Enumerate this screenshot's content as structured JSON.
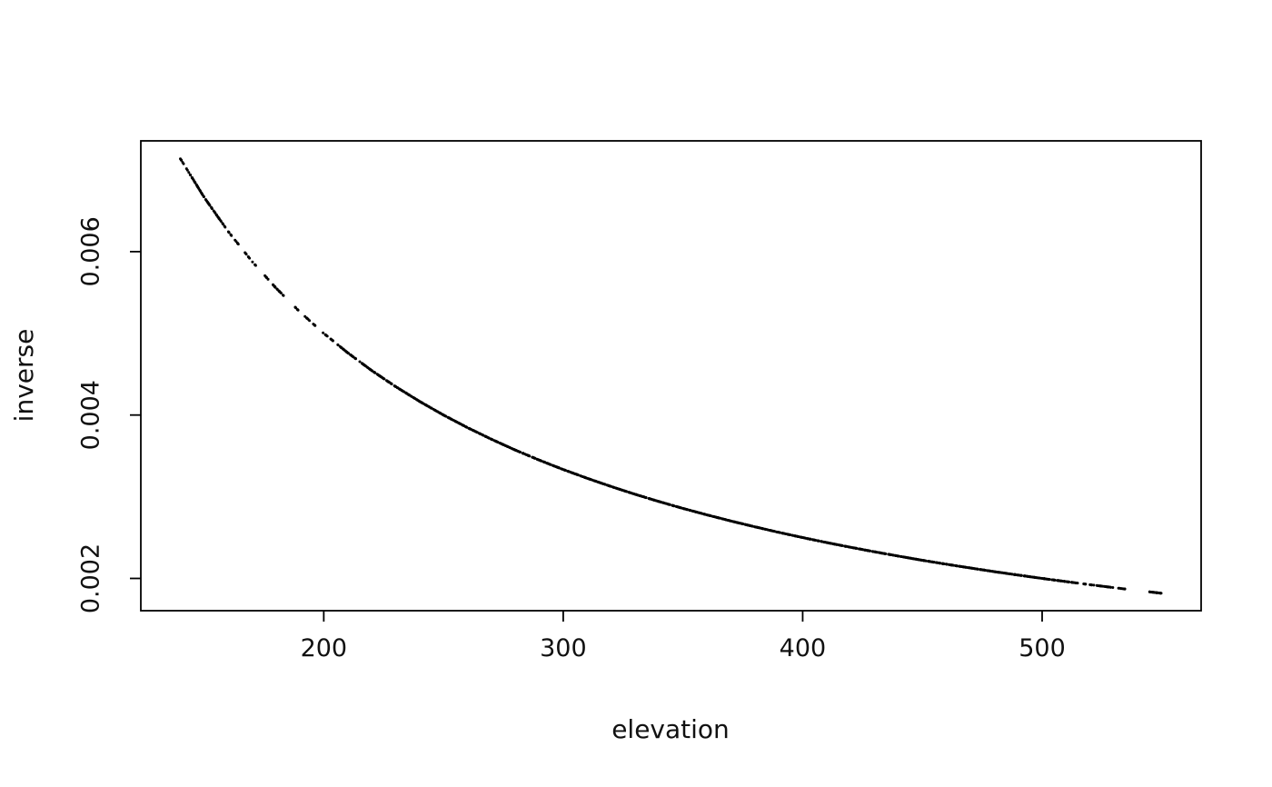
{
  "page": {
    "background": "#ffffff"
  },
  "chart_data": {
    "type": "scatter",
    "xlabel": "elevation",
    "ylabel": "inverse",
    "x_ticks": [
      200,
      300,
      400,
      500
    ],
    "x_tick_labels": [
      "200",
      "300",
      "400",
      "500"
    ],
    "y_ticks": [
      0.002,
      0.004,
      0.006
    ],
    "y_tick_labels": [
      "0.002",
      "0.004",
      "0.006"
    ],
    "xlim": [
      123.6,
      566.4
    ],
    "ylim": [
      0.001605,
      0.007356
    ],
    "grid": false,
    "legend": false,
    "point_color": "#000000",
    "axis_color": "#000000",
    "relationship": "inverse = 1 / elevation",
    "x_range": [
      140,
      550
    ],
    "y_range": [
      0.001818,
      0.007143
    ],
    "sample_points": {
      "elevation": [
        140,
        150,
        160,
        170,
        180,
        190,
        200,
        210,
        220,
        230,
        240,
        250,
        260,
        270,
        280,
        290,
        300,
        310,
        320,
        330,
        340,
        350,
        360,
        370,
        380,
        390,
        400,
        410,
        420,
        430,
        440,
        450,
        460,
        470,
        480,
        490,
        500,
        510,
        520,
        530,
        540,
        550
      ],
      "inverse": [
        0.007143,
        0.006667,
        0.00625,
        0.005882,
        0.005556,
        0.005263,
        0.005,
        0.004762,
        0.004545,
        0.004348,
        0.004167,
        0.004,
        0.003846,
        0.003704,
        0.003571,
        0.003448,
        0.003333,
        0.003226,
        0.003125,
        0.00303,
        0.002941,
        0.002857,
        0.002778,
        0.002703,
        0.002632,
        0.002564,
        0.0025,
        0.002439,
        0.002381,
        0.002326,
        0.002273,
        0.002222,
        0.002174,
        0.002128,
        0.002083,
        0.002041,
        0.002,
        0.001961,
        0.001923,
        0.001887,
        0.001852,
        0.001818
      ]
    }
  }
}
